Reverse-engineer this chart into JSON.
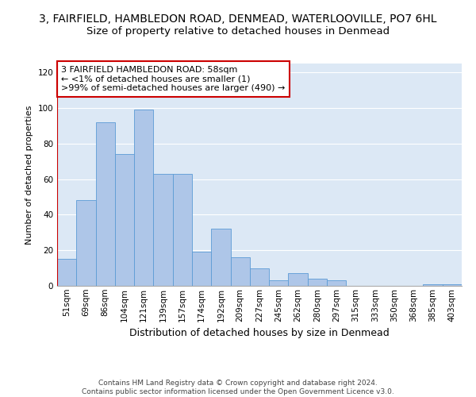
{
  "title1": "3, FAIRFIELD, HAMBLEDON ROAD, DENMEAD, WATERLOOVILLE, PO7 6HL",
  "title2": "Size of property relative to detached houses in Denmead",
  "xlabel": "Distribution of detached houses by size in Denmead",
  "ylabel": "Number of detached properties",
  "categories": [
    "51sqm",
    "69sqm",
    "86sqm",
    "104sqm",
    "121sqm",
    "139sqm",
    "157sqm",
    "174sqm",
    "192sqm",
    "209sqm",
    "227sqm",
    "245sqm",
    "262sqm",
    "280sqm",
    "297sqm",
    "315sqm",
    "333sqm",
    "350sqm",
    "368sqm",
    "385sqm",
    "403sqm"
  ],
  "values": [
    15,
    48,
    92,
    74,
    99,
    63,
    63,
    19,
    32,
    16,
    10,
    3,
    7,
    4,
    3,
    0,
    0,
    0,
    0,
    1,
    1
  ],
  "bar_color": "#aec6e8",
  "bar_edge_color": "#5b9bd5",
  "highlight_color": "#cc0000",
  "annotation_text": "3 FAIRFIELD HAMBLEDON ROAD: 58sqm\n← <1% of detached houses are smaller (1)\n>99% of semi-detached houses are larger (490) →",
  "annotation_box_color": "#ffffff",
  "annotation_box_edge_color": "#cc0000",
  "ylim": [
    0,
    125
  ],
  "yticks": [
    0,
    20,
    40,
    60,
    80,
    100,
    120
  ],
  "background_color": "#dce8f5",
  "footer_text": "Contains HM Land Registry data © Crown copyright and database right 2024.\nContains public sector information licensed under the Open Government Licence v3.0.",
  "title1_fontsize": 10,
  "title2_fontsize": 9.5,
  "xlabel_fontsize": 9,
  "ylabel_fontsize": 8,
  "tick_fontsize": 7.5,
  "annotation_fontsize": 8,
  "footer_fontsize": 6.5
}
